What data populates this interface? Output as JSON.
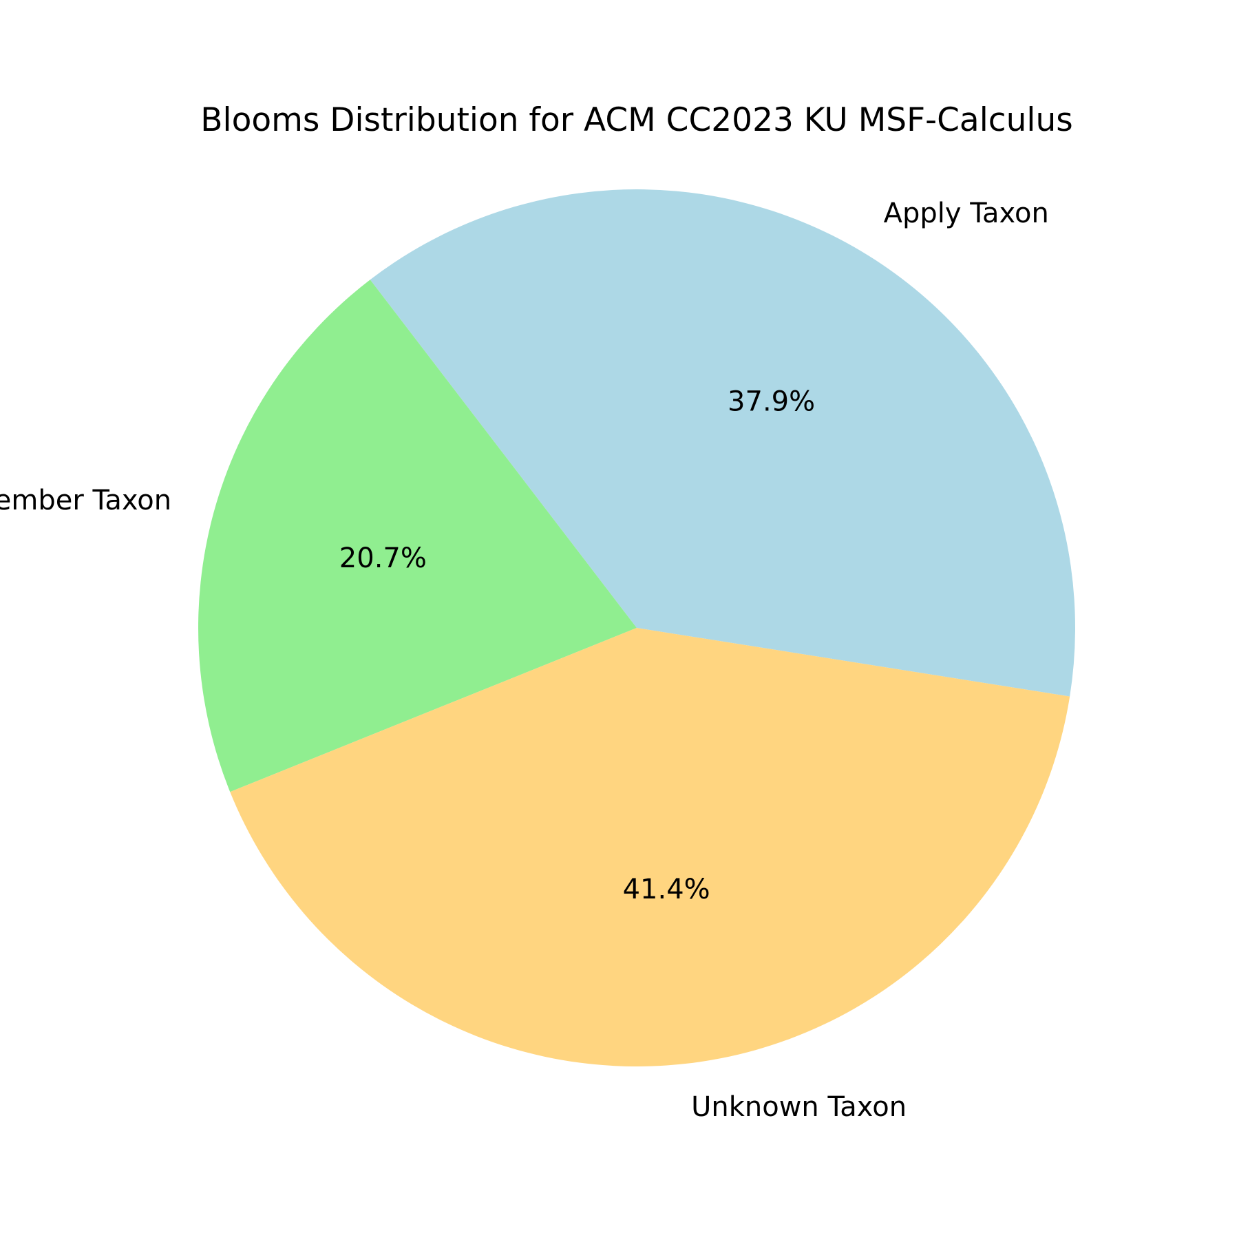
{
  "chart_data": {
    "type": "pie",
    "title": "Blooms Distribution for ACM CC2023 KU MSF-Calculus",
    "categories": [
      "Apply Taxon",
      "Remember Taxon",
      "Unknown Taxon"
    ],
    "values": [
      37.9,
      20.7,
      41.4
    ],
    "value_labels": [
      "37.9%",
      "20.7%",
      "41.4%"
    ],
    "colors": [
      "#add8e6",
      "#90ee90",
      "#ffd580"
    ],
    "value_unit": "%",
    "start_angle_deg": -9,
    "direction": "counterclockwise"
  }
}
